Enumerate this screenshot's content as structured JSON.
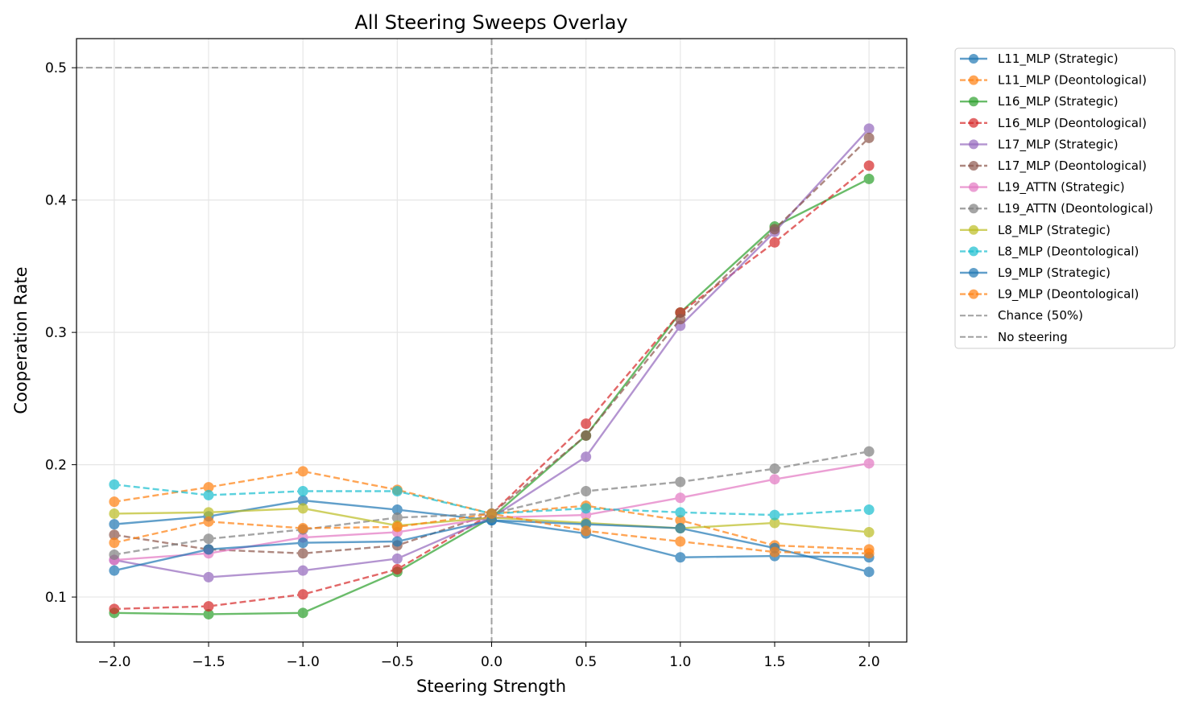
{
  "chart_data": {
    "type": "line",
    "title": "All Steering Sweeps Overlay",
    "xlabel": "Steering Strength",
    "ylabel": "Cooperation Rate",
    "xlim": [
      -2.2,
      2.2
    ],
    "ylim": [
      0.066,
      0.522
    ],
    "xticks": [
      -2.0,
      -1.5,
      -1.0,
      -0.5,
      0.0,
      0.5,
      1.0,
      1.5,
      2.0
    ],
    "xtick_labels": [
      "−2.0",
      "−1.5",
      "−1.0",
      "−0.5",
      "0.0",
      "0.5",
      "1.0",
      "1.5",
      "2.0"
    ],
    "yticks": [
      0.1,
      0.2,
      0.3,
      0.4,
      0.5
    ],
    "ytick_labels": [
      "0.1",
      "0.2",
      "0.3",
      "0.4",
      "0.5"
    ],
    "grid": true,
    "legend_placement": "outside-top-right",
    "x": [
      -2.0,
      -1.5,
      -1.0,
      -0.5,
      0.0,
      0.5,
      1.0,
      1.5,
      2.0
    ],
    "series": [
      {
        "name": "L11_MLP (Strategic)",
        "color": "#1f77b4",
        "dash": false,
        "values": [
          0.155,
          0.161,
          0.173,
          0.166,
          0.158,
          0.148,
          0.13,
          0.131,
          0.13
        ]
      },
      {
        "name": "L11_MLP (Deontological)",
        "color": "#ff7f0e",
        "dash": true,
        "values": [
          0.172,
          0.183,
          0.195,
          0.181,
          0.163,
          0.169,
          0.158,
          0.139,
          0.136
        ]
      },
      {
        "name": "L16_MLP (Strategic)",
        "color": "#2ca02c",
        "dash": false,
        "values": [
          0.088,
          0.087,
          0.088,
          0.119,
          0.16,
          0.222,
          0.315,
          0.38,
          0.416
        ]
      },
      {
        "name": "L16_MLP (Deontological)",
        "color": "#d62728",
        "dash": true,
        "values": [
          0.091,
          0.093,
          0.102,
          0.121,
          0.163,
          0.231,
          0.315,
          0.368,
          0.426
        ]
      },
      {
        "name": "L17_MLP (Strategic)",
        "color": "#9467bd",
        "dash": false,
        "values": [
          0.128,
          0.115,
          0.12,
          0.129,
          0.16,
          0.206,
          0.305,
          0.376,
          0.454
        ]
      },
      {
        "name": "L17_MLP (Deontological)",
        "color": "#8c564b",
        "dash": true,
        "values": [
          0.147,
          0.136,
          0.133,
          0.139,
          0.163,
          0.222,
          0.31,
          0.378,
          0.447
        ]
      },
      {
        "name": "L19_ATTN (Strategic)",
        "color": "#e377c2",
        "dash": false,
        "values": [
          0.128,
          0.133,
          0.145,
          0.149,
          0.16,
          0.162,
          0.175,
          0.189,
          0.201
        ]
      },
      {
        "name": "L19_ATTN (Deontological)",
        "color": "#7f7f7f",
        "dash": true,
        "values": [
          0.132,
          0.144,
          0.151,
          0.16,
          0.163,
          0.18,
          0.187,
          0.197,
          0.21
        ]
      },
      {
        "name": "L8_MLP (Strategic)",
        "color": "#bcbd22",
        "dash": false,
        "values": [
          0.163,
          0.164,
          0.167,
          0.154,
          0.16,
          0.156,
          0.152,
          0.156,
          0.149
        ]
      },
      {
        "name": "L8_MLP (Deontological)",
        "color": "#17becf",
        "dash": true,
        "values": [
          0.185,
          0.177,
          0.18,
          0.18,
          0.163,
          0.167,
          0.164,
          0.162,
          0.166
        ]
      },
      {
        "name": "L9_MLP (Strategic)",
        "color": "#1f77b4",
        "dash": false,
        "values": [
          0.12,
          0.136,
          0.141,
          0.142,
          0.158,
          0.155,
          0.152,
          0.137,
          0.119
        ]
      },
      {
        "name": "L9_MLP (Deontological)",
        "color": "#ff7f0e",
        "dash": true,
        "values": [
          0.141,
          0.157,
          0.152,
          0.153,
          0.163,
          0.15,
          0.142,
          0.134,
          0.133
        ]
      }
    ],
    "reference_lines": [
      {
        "name": "Chance (50%)",
        "orientation": "horizontal",
        "value": 0.5,
        "color": "#a0a0a0"
      },
      {
        "name": "No steering",
        "orientation": "vertical",
        "value": 0.0,
        "color": "#a0a0a0"
      }
    ]
  }
}
